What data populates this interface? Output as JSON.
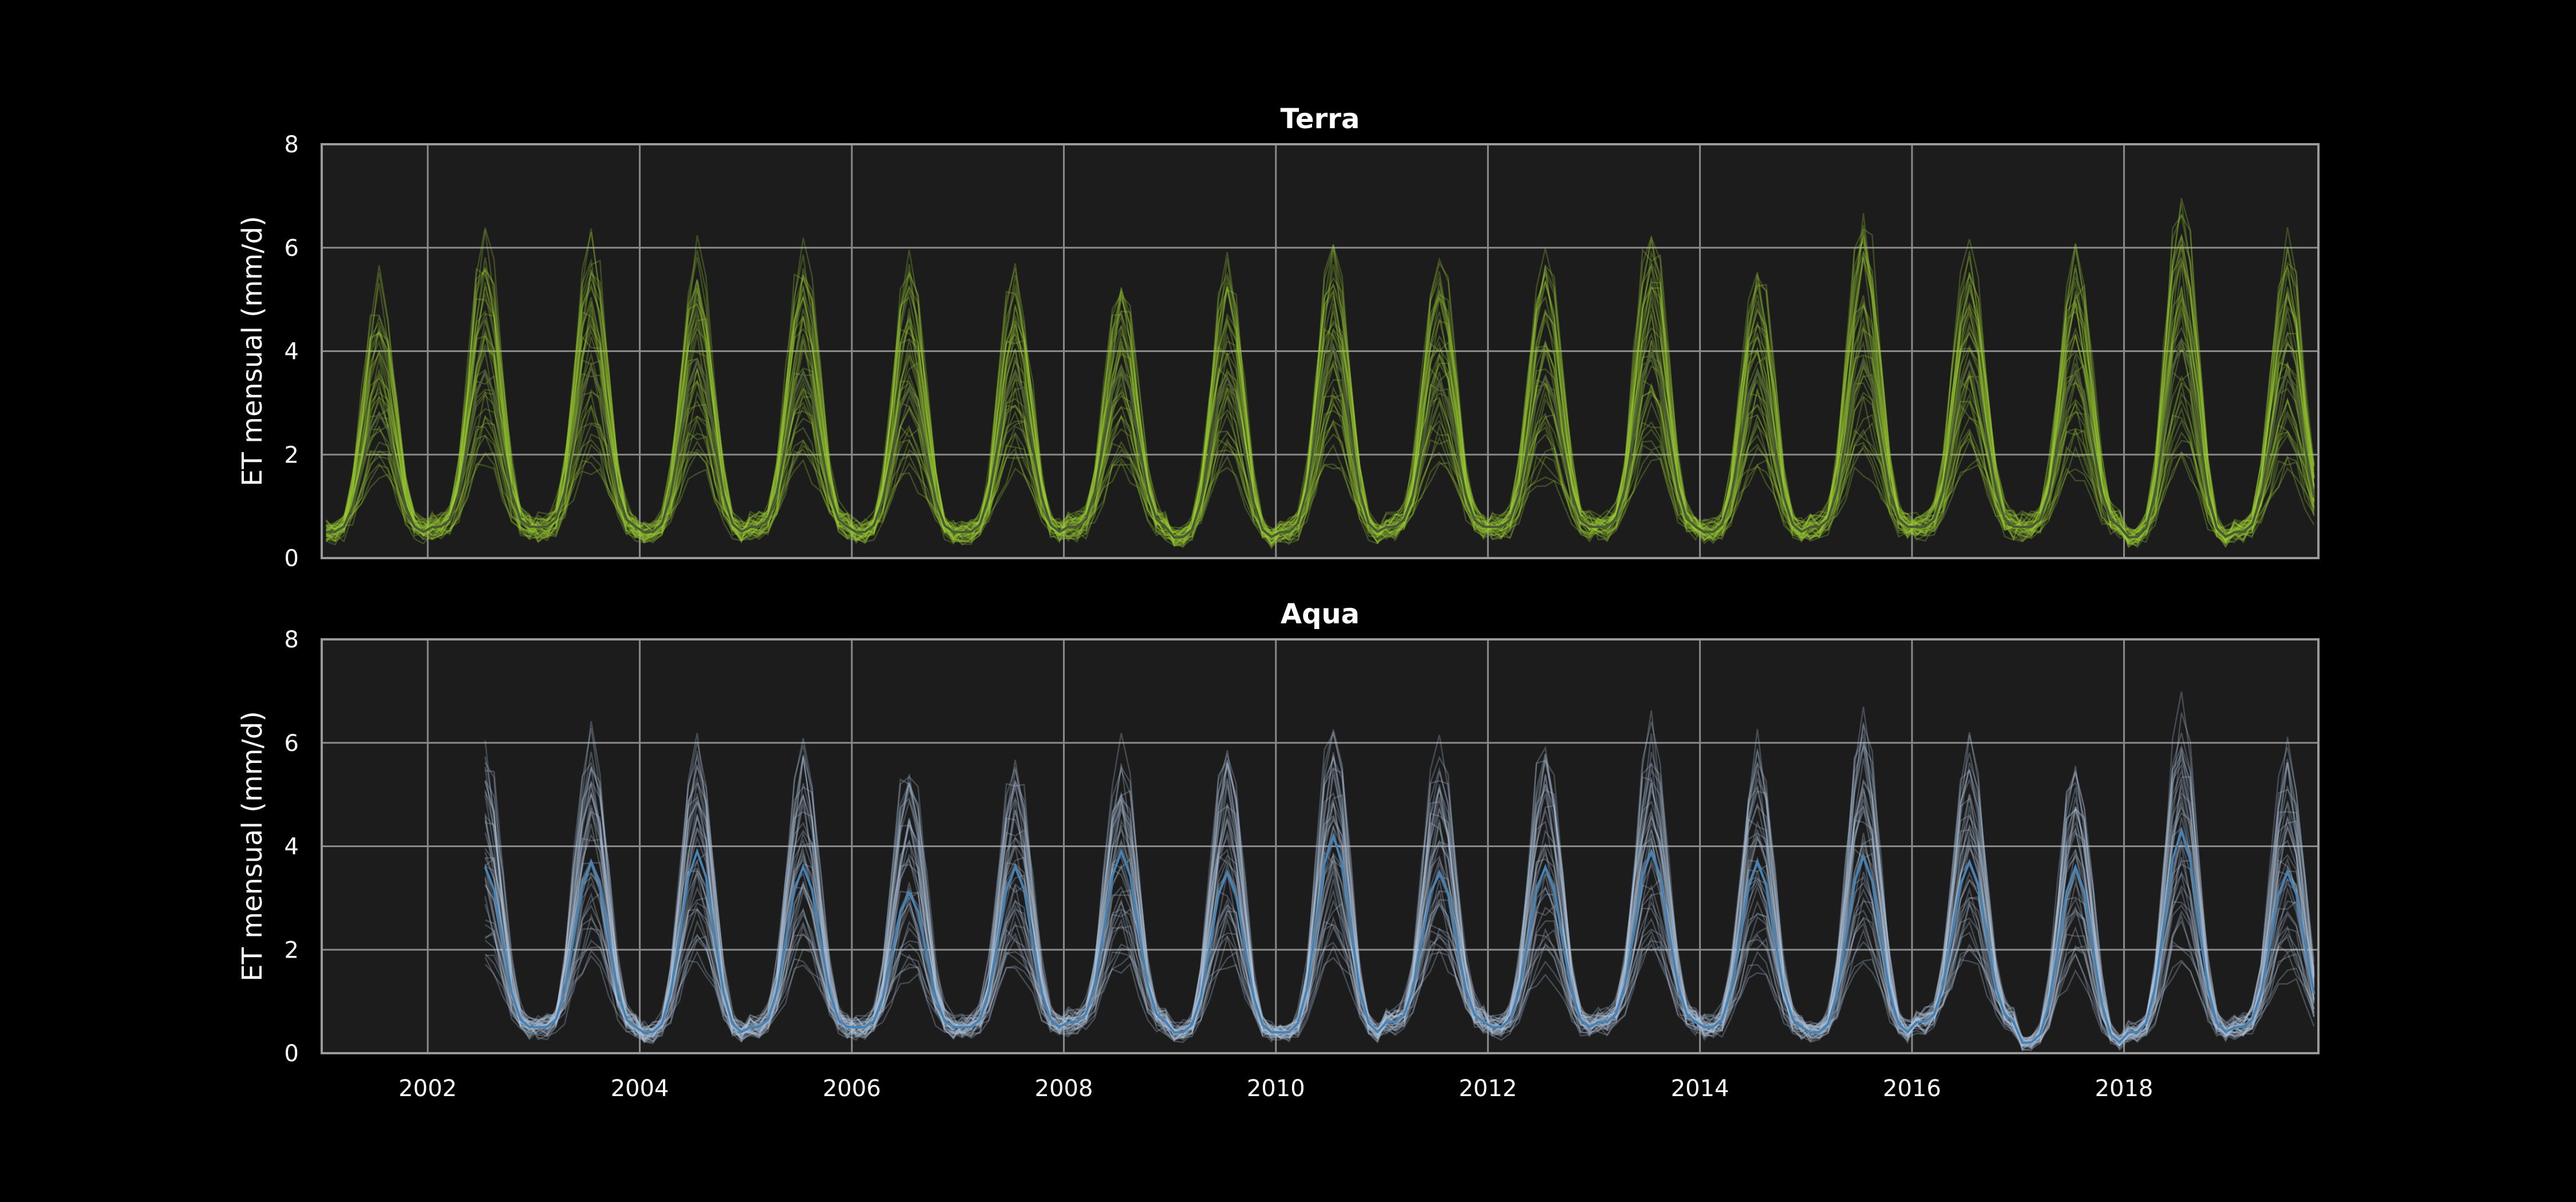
{
  "chart_data": [
    {
      "type": "line",
      "title": "Terra",
      "xlabel": "",
      "ylabel": "ET mensual (mm/d)",
      "xlim": [
        "2001-01",
        "2019-11"
      ],
      "ylim": [
        0,
        8
      ],
      "yticks": [
        "0",
        "2",
        "4",
        "6",
        "8"
      ],
      "xticks": [],
      "grid": true,
      "facecolor": "#1c1c1c",
      "ensemble_color": "#9acd32",
      "mean_color": "#4a5a35",
      "series": [
        {
          "role": "mean",
          "annual_peak_mmd": [
            2.8,
            3.6,
            3.7,
            3.8,
            3.6,
            3.3,
            3.6,
            3.7,
            3.5,
            4.1,
            3.4,
            3.5,
            4.0,
            3.6,
            3.8,
            3.8,
            3.6,
            4.2,
            3.6
          ],
          "annual_trough_mmd": [
            0.5,
            0.6,
            0.6,
            0.5,
            0.6,
            0.5,
            0.5,
            0.6,
            0.4,
            0.5,
            0.6,
            0.6,
            0.6,
            0.5,
            0.6,
            0.6,
            0.6,
            0.4,
            0.5
          ]
        }
      ],
      "ensemble": {
        "annual_upper_envelope_mmd": [
          5.2,
          6.2,
          6.2,
          5.8,
          5.9,
          5.7,
          5.5,
          5.4,
          5.7,
          6.0,
          5.8,
          5.9,
          6.5,
          5.7,
          6.6,
          5.9,
          5.9,
          7.0,
          6.0
        ],
        "annual_lower_envelope_mmd": [
          1.6,
          1.8,
          1.8,
          1.8,
          1.8,
          1.6,
          1.7,
          1.7,
          1.8,
          1.9,
          1.8,
          1.6,
          1.9,
          1.7,
          1.8,
          1.8,
          1.7,
          1.8,
          1.6
        ]
      }
    },
    {
      "type": "line",
      "title": "Aqua",
      "xlabel": "",
      "ylabel": "ET mensual (mm/d)",
      "xlim": [
        "2001-01",
        "2019-11"
      ],
      "ylim": [
        0,
        8
      ],
      "yticks": [
        "0",
        "2",
        "4",
        "6",
        "8"
      ],
      "xticks": [
        "2002",
        "2004",
        "2006",
        "2008",
        "2010",
        "2012",
        "2014",
        "2016",
        "2018"
      ],
      "grid": true,
      "facecolor": "#1c1c1c",
      "ensemble_color": "#b0c4de",
      "mean_color": "#4682b4",
      "series_start": "2002-07",
      "series": [
        {
          "role": "mean",
          "annual_peak_mmd": [
            null,
            3.6,
            3.7,
            3.9,
            3.6,
            3.1,
            3.6,
            3.9,
            3.5,
            4.2,
            3.5,
            3.6,
            3.9,
            3.7,
            3.8,
            3.7,
            3.6,
            4.3,
            3.5
          ],
          "annual_trough_mmd": [
            null,
            0.5,
            0.5,
            0.4,
            0.5,
            0.5,
            0.5,
            0.6,
            0.4,
            0.4,
            0.6,
            0.5,
            0.6,
            0.5,
            0.4,
            0.6,
            0.2,
            0.4,
            0.5
          ]
        }
      ],
      "ensemble": {
        "annual_upper_envelope_mmd": [
          null,
          5.8,
          6.1,
          5.9,
          5.8,
          5.6,
          5.6,
          5.7,
          5.9,
          6.2,
          5.8,
          6.0,
          6.1,
          5.9,
          6.5,
          5.9,
          5.7,
          6.5,
          5.8
        ],
        "annual_lower_envelope_mmd": [
          null,
          1.7,
          1.8,
          1.8,
          1.7,
          1.5,
          1.7,
          1.7,
          1.8,
          1.9,
          1.8,
          1.6,
          1.9,
          1.7,
          1.8,
          1.8,
          1.6,
          1.8,
          1.5
        ]
      }
    }
  ]
}
